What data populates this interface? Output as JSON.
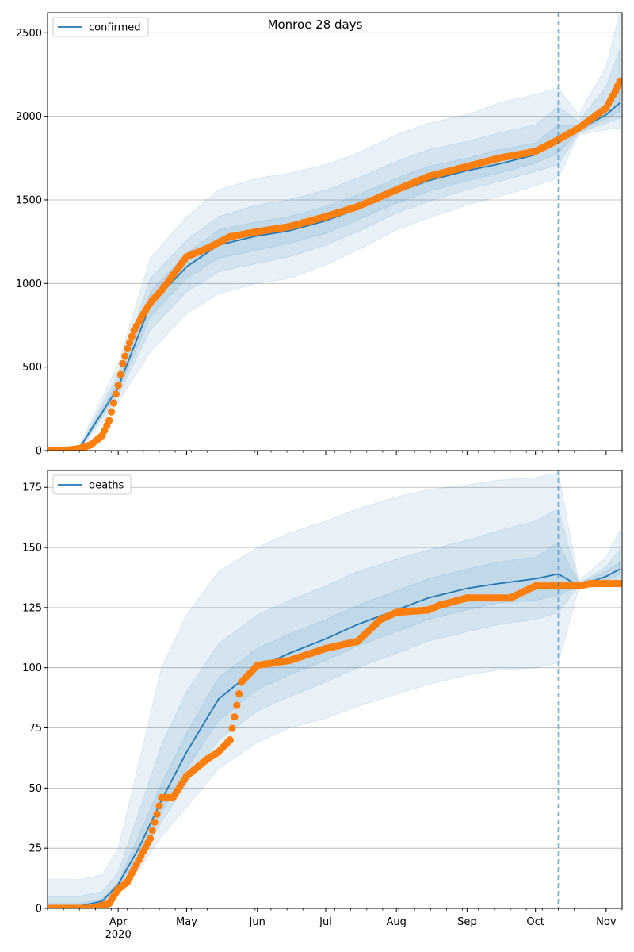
{
  "chart_data": [
    {
      "type": "line",
      "title": "Monroe 28 days",
      "legend": {
        "position": "top-left",
        "label": "confirmed"
      },
      "ylim": [
        0,
        2620
      ],
      "yticks": [
        0,
        500,
        1000,
        1500,
        2000,
        2500
      ],
      "grid": "y",
      "forecast_start": "2020-10-11",
      "colors": {
        "line": "#1f77b4",
        "observed": "#ff7f0e",
        "band": "#1f77b4"
      },
      "model": {
        "name": "confirmed",
        "x": [
          "2020-03-01",
          "2020-03-15",
          "2020-04-01",
          "2020-04-15",
          "2020-05-01",
          "2020-05-15",
          "2020-06-01",
          "2020-06-15",
          "2020-07-01",
          "2020-07-15",
          "2020-08-01",
          "2020-08-15",
          "2020-09-01",
          "2020-09-15",
          "2020-10-01",
          "2020-10-11",
          "2020-10-20",
          "2020-11-01",
          "2020-11-07"
        ],
        "values": [
          0,
          15,
          380,
          870,
          1100,
          1230,
          1285,
          1315,
          1375,
          1445,
          1545,
          1615,
          1675,
          1715,
          1770,
          1860,
          1920,
          2010,
          2080
        ]
      },
      "bands": [
        {
          "x": [
            "2020-03-01",
            "2020-03-15",
            "2020-04-01",
            "2020-04-15",
            "2020-05-01",
            "2020-05-15",
            "2020-06-01",
            "2020-06-15",
            "2020-07-01",
            "2020-07-15",
            "2020-08-01",
            "2020-08-15",
            "2020-09-01",
            "2020-09-15",
            "2020-10-01",
            "2020-10-11",
            "2020-10-20",
            "2020-11-01",
            "2020-11-07"
          ],
          "lower": [
            0,
            8,
            290,
            590,
            820,
            940,
            1000,
            1030,
            1110,
            1200,
            1320,
            1390,
            1470,
            1520,
            1585,
            1630,
            1890,
            1920,
            1930
          ],
          "upper": [
            0,
            28,
            520,
            1150,
            1400,
            1560,
            1630,
            1660,
            1710,
            1780,
            1890,
            1960,
            2010,
            2080,
            2130,
            2170,
            2010,
            2300,
            2620
          ]
        },
        {
          "x": [
            "2020-03-01",
            "2020-03-15",
            "2020-04-01",
            "2020-04-15",
            "2020-05-01",
            "2020-05-15",
            "2020-06-01",
            "2020-06-15",
            "2020-07-01",
            "2020-07-15",
            "2020-08-01",
            "2020-08-15",
            "2020-09-01",
            "2020-09-15",
            "2020-10-01",
            "2020-10-11",
            "2020-10-20",
            "2020-11-01",
            "2020-11-07"
          ],
          "lower": [
            0,
            11,
            330,
            720,
            950,
            1070,
            1120,
            1160,
            1230,
            1310,
            1420,
            1490,
            1560,
            1610,
            1670,
            1710,
            1900,
            1960,
            1990
          ],
          "upper": [
            0,
            22,
            460,
            1030,
            1260,
            1400,
            1470,
            1500,
            1560,
            1630,
            1730,
            1800,
            1850,
            1900,
            1950,
            2060,
            1970,
            2180,
            2400
          ]
        },
        {
          "x": [
            "2020-03-01",
            "2020-03-15",
            "2020-04-01",
            "2020-04-15",
            "2020-05-01",
            "2020-05-15",
            "2020-06-01",
            "2020-06-15",
            "2020-07-01",
            "2020-07-15",
            "2020-08-01",
            "2020-08-15",
            "2020-09-01",
            "2020-09-15",
            "2020-10-01",
            "2020-10-11",
            "2020-10-20",
            "2020-11-01",
            "2020-11-07"
          ],
          "lower": [
            0,
            13,
            355,
            800,
            1030,
            1150,
            1200,
            1240,
            1300,
            1380,
            1480,
            1550,
            1615,
            1660,
            1720,
            1780,
            1910,
            1985,
            2030
          ],
          "upper": [
            0,
            18,
            420,
            950,
            1180,
            1320,
            1370,
            1400,
            1460,
            1530,
            1630,
            1700,
            1750,
            1800,
            1840,
            1950,
            1940,
            2080,
            2220
          ]
        }
      ],
      "observed": {
        "x": [
          "2020-03-01",
          "2020-03-10",
          "2020-03-15",
          "2020-03-20",
          "2020-03-25",
          "2020-03-28",
          "2020-04-01",
          "2020-04-03",
          "2020-04-05",
          "2020-04-08",
          "2020-04-10",
          "2020-04-13",
          "2020-04-16",
          "2020-04-20",
          "2020-04-25",
          "2020-05-01",
          "2020-05-10",
          "2020-05-20",
          "2020-06-01",
          "2020-06-15",
          "2020-07-01",
          "2020-07-15",
          "2020-08-01",
          "2020-08-15",
          "2020-09-01",
          "2020-09-15",
          "2020-10-01",
          "2020-10-11",
          "2020-10-20",
          "2020-11-01",
          "2020-11-05",
          "2020-11-07"
        ],
        "values": [
          0,
          3,
          12,
          35,
          90,
          180,
          390,
          520,
          610,
          720,
          770,
          840,
          900,
          960,
          1050,
          1160,
          1210,
          1280,
          1310,
          1340,
          1400,
          1460,
          1560,
          1640,
          1700,
          1750,
          1790,
          1860,
          1930,
          2050,
          2150,
          2210
        ]
      },
      "x_axis": {
        "tick_labels": []
      }
    },
    {
      "type": "line",
      "title": "",
      "legend": {
        "position": "top-left",
        "label": "deaths"
      },
      "ylim": [
        0,
        182
      ],
      "yticks": [
        0,
        25,
        50,
        75,
        100,
        125,
        150,
        175
      ],
      "grid": "y",
      "forecast_start": "2020-10-11",
      "colors": {
        "line": "#1f77b4",
        "observed": "#ff7f0e",
        "band": "#1f77b4"
      },
      "model": {
        "name": "deaths",
        "x": [
          "2020-03-01",
          "2020-03-15",
          "2020-03-25",
          "2020-04-01",
          "2020-04-10",
          "2020-04-20",
          "2020-05-01",
          "2020-05-15",
          "2020-06-01",
          "2020-06-15",
          "2020-07-01",
          "2020-07-15",
          "2020-08-01",
          "2020-08-15",
          "2020-09-01",
          "2020-09-15",
          "2020-10-01",
          "2020-10-11",
          "2020-10-20",
          "2020-11-01",
          "2020-11-07"
        ],
        "values": [
          0,
          1,
          3,
          10,
          25,
          45,
          65,
          87,
          100,
          106,
          112,
          118,
          124,
          129,
          133,
          135,
          137,
          139,
          134,
          138,
          141
        ]
      },
      "bands": [
        {
          "x": [
            "2020-03-01",
            "2020-03-15",
            "2020-03-25",
            "2020-04-01",
            "2020-04-10",
            "2020-04-20",
            "2020-05-01",
            "2020-05-15",
            "2020-06-01",
            "2020-06-15",
            "2020-07-01",
            "2020-07-15",
            "2020-08-01",
            "2020-08-15",
            "2020-09-01",
            "2020-09-15",
            "2020-10-01",
            "2020-10-11",
            "2020-10-20",
            "2020-11-01",
            "2020-11-07"
          ],
          "lower": [
            0,
            0,
            1,
            6,
            16,
            30,
            42,
            58,
            69,
            75,
            79,
            84,
            89,
            93,
            97,
            99,
            100,
            102,
            133,
            134,
            135
          ],
          "upper": [
            12,
            12,
            14,
            25,
            60,
            100,
            122,
            140,
            150,
            156,
            161,
            166,
            171,
            174,
            176,
            178,
            179,
            181,
            136,
            146,
            157
          ]
        },
        {
          "x": [
            "2020-03-01",
            "2020-03-15",
            "2020-03-25",
            "2020-04-01",
            "2020-04-10",
            "2020-04-20",
            "2020-05-01",
            "2020-05-15",
            "2020-06-01",
            "2020-06-15",
            "2020-07-01",
            "2020-07-15",
            "2020-08-01",
            "2020-08-15",
            "2020-09-01",
            "2020-09-15",
            "2020-10-01",
            "2020-10-11",
            "2020-10-20",
            "2020-11-01",
            "2020-11-07"
          ],
          "lower": [
            0,
            0,
            2,
            8,
            20,
            36,
            52,
            70,
            82,
            88,
            94,
            100,
            106,
            111,
            115,
            118,
            120,
            123,
            134,
            135,
            137
          ],
          "upper": [
            5,
            5,
            7,
            15,
            40,
            68,
            90,
            110,
            122,
            128,
            134,
            140,
            145,
            149,
            153,
            157,
            161,
            166,
            135,
            142,
            149
          ]
        },
        {
          "x": [
            "2020-03-01",
            "2020-03-15",
            "2020-03-25",
            "2020-04-01",
            "2020-04-10",
            "2020-04-20",
            "2020-05-01",
            "2020-05-15",
            "2020-06-01",
            "2020-06-15",
            "2020-07-01",
            "2020-07-15",
            "2020-08-01",
            "2020-08-15",
            "2020-09-01",
            "2020-09-15",
            "2020-10-01",
            "2020-10-11",
            "2020-10-20",
            "2020-11-01",
            "2020-11-07"
          ],
          "lower": [
            0,
            0,
            2,
            9,
            22,
            40,
            58,
            78,
            91,
            97,
            103,
            109,
            115,
            120,
            124,
            127,
            128,
            130,
            134,
            136,
            139
          ],
          "upper": [
            2,
            2,
            4,
            11,
            30,
            52,
            73,
            96,
            108,
            114,
            120,
            126,
            132,
            137,
            141,
            144,
            146,
            152,
            135,
            140,
            144
          ]
        }
      ],
      "observed": {
        "x": [
          "2020-03-01",
          "2020-03-20",
          "2020-03-28",
          "2020-04-01",
          "2020-04-05",
          "2020-04-10",
          "2020-04-15",
          "2020-04-20",
          "2020-04-25",
          "2020-05-01",
          "2020-05-10",
          "2020-05-15",
          "2020-05-20",
          "2020-05-25",
          "2020-06-01",
          "2020-06-15",
          "2020-07-01",
          "2020-07-15",
          "2020-07-25",
          "2020-08-01",
          "2020-08-15",
          "2020-08-20",
          "2020-09-01",
          "2020-09-20",
          "2020-10-01",
          "2020-10-11",
          "2020-10-20",
          "2020-10-25",
          "2020-11-07"
        ],
        "values": [
          0,
          0,
          2,
          8,
          11,
          20,
          29,
          46,
          46,
          55,
          62,
          65,
          70,
          94,
          101,
          103,
          108,
          111,
          120,
          123,
          124,
          126,
          129,
          129,
          134,
          134,
          134,
          135,
          135
        ]
      },
      "x_axis": {
        "tick_labels": [
          {
            "date": "2020-04-01",
            "label": "Apr"
          },
          {
            "date": "2020-05-01",
            "label": "May"
          },
          {
            "date": "2020-06-01",
            "label": "Jun"
          },
          {
            "date": "2020-07-01",
            "label": "Jul"
          },
          {
            "date": "2020-08-01",
            "label": "Aug"
          },
          {
            "date": "2020-09-01",
            "label": "Sep"
          },
          {
            "date": "2020-10-01",
            "label": "Oct"
          },
          {
            "date": "2020-11-01",
            "label": "Nov"
          }
        ],
        "year_label": "2020"
      }
    }
  ]
}
